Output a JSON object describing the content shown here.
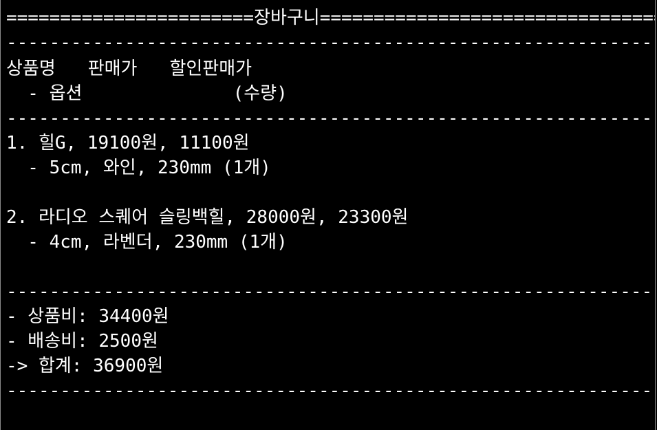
{
  "cart": {
    "title_line": "=======================장바구니=============================================",
    "divider": "--------------------------------------------------------------------------------",
    "header_row1": "상품명   판매가   할인판매가",
    "header_row2": "  - 옵션              (수량)",
    "items": [
      {
        "line1": "1. 힐G, 19100원, 11100원",
        "line2": "  - 5cm, 와인, 230mm (1개)"
      },
      {
        "line1": "2. 라디오 스퀘어 슬링백힐, 28000원, 23300원",
        "line2": "  - 4cm, 라벤더, 230mm (1개)"
      }
    ],
    "summary": {
      "subtotal": "- 상품비: 34400원",
      "shipping": "- 배송비: 2500원",
      "total": "-> 합계: 36900원"
    }
  }
}
